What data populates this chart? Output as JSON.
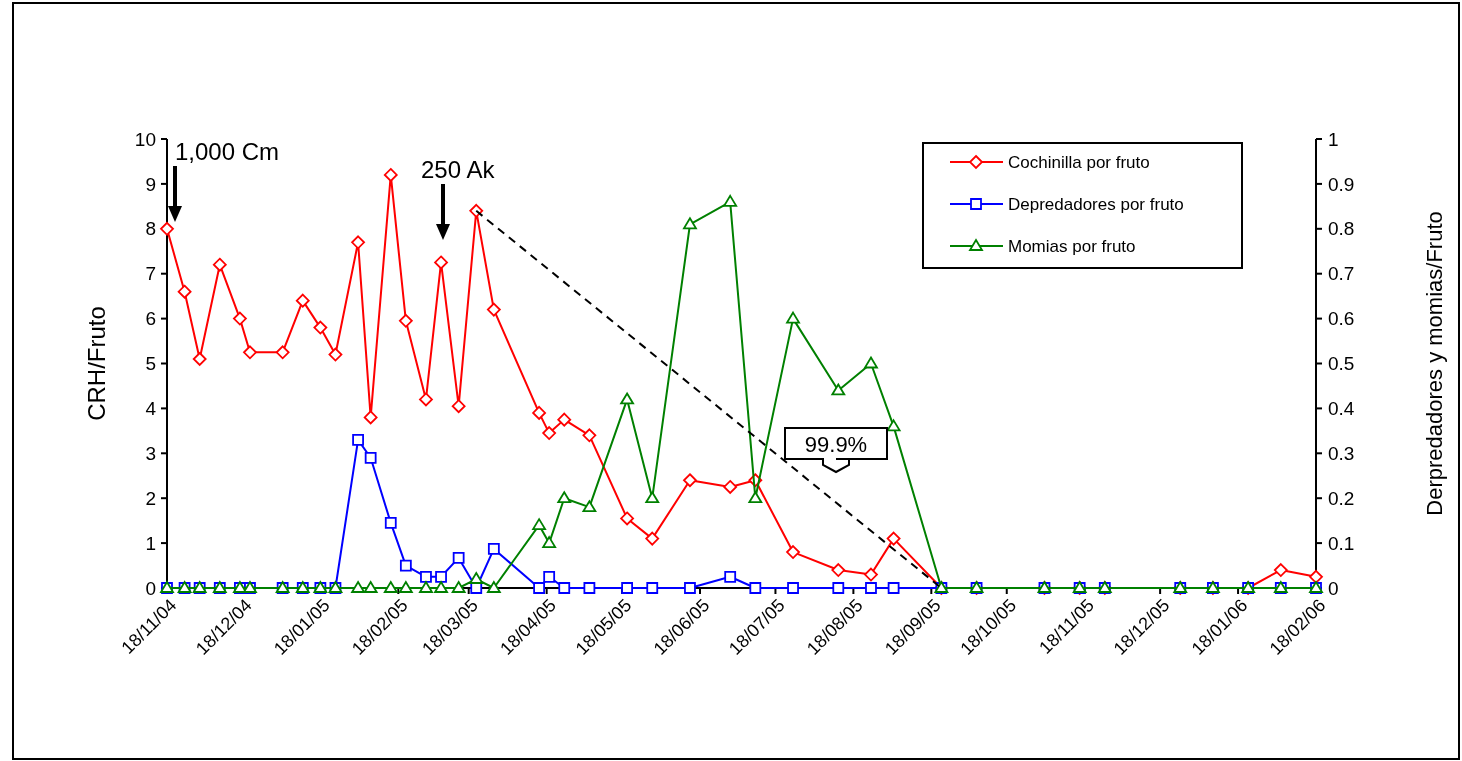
{
  "chart_data": {
    "type": "line",
    "ylabel": "CRH/Fruto",
    "y2label": "Derpredadores y momias/Fruto",
    "x": [
      "2004-11-18",
      "2004-11-25",
      "2004-12-01",
      "2004-12-09",
      "2004-12-17",
      "2004-12-21",
      "2005-01-03",
      "2005-01-11",
      "2005-01-18",
      "2005-01-24",
      "2005-02-02",
      "2005-02-07",
      "2005-02-15",
      "2005-02-21",
      "2005-03-01",
      "2005-03-07",
      "2005-03-14",
      "2005-03-21",
      "2005-03-28",
      "2005-04-15",
      "2005-04-19",
      "2005-04-25",
      "2005-05-05",
      "2005-05-20",
      "2005-05-30",
      "2005-06-14",
      "2005-06-30",
      "2005-07-10",
      "2005-07-25",
      "2005-08-12",
      "2005-08-25",
      "2005-09-03",
      "2005-09-22",
      "2005-10-06",
      "2005-11-02",
      "2005-11-16",
      "2005-11-26",
      "2005-12-26",
      "2006-01-08",
      "2006-01-22",
      "2006-02-04",
      "2006-02-18"
    ],
    "series": [
      {
        "name": "Cochinilla por fruto",
        "color": "#ff0000",
        "marker": "diamond",
        "values": [
          8.0,
          6.6,
          5.1,
          7.2,
          6.0,
          5.25,
          5.25,
          6.4,
          5.8,
          5.2,
          7.7,
          3.8,
          9.2,
          5.95,
          4.2,
          7.25,
          4.05,
          8.4,
          6.2,
          3.9,
          3.45,
          3.75,
          3.4,
          1.55,
          1.1,
          2.4,
          2.25,
          2.4,
          0.8,
          0.4,
          0.3,
          1.1,
          0,
          0,
          0,
          0,
          0,
          0,
          0,
          0,
          0.4,
          0.25
        ]
      },
      {
        "name": "Depredadores por fruto",
        "color": "#0000ff",
        "marker": "square",
        "axis": "y2",
        "values": [
          0,
          0,
          0,
          0,
          0,
          0,
          0,
          0,
          0,
          0,
          0.33,
          0.29,
          0.145,
          0.05,
          0.025,
          0.025,
          0.067,
          0,
          0.087,
          0,
          0.025,
          0,
          0,
          0,
          0,
          0,
          0.025,
          0,
          0,
          0,
          0,
          0,
          0,
          0,
          0,
          0,
          0,
          0,
          0,
          0,
          0,
          0
        ]
      },
      {
        "name": "Momias por fruto",
        "color": "#008000",
        "marker": "triangle",
        "axis": "y2",
        "values": [
          0,
          0,
          0,
          0,
          0,
          0,
          0,
          0,
          0,
          0,
          0,
          0,
          0,
          0,
          0,
          0,
          0,
          0.02,
          0,
          0.14,
          0.1,
          0.2,
          0.18,
          0.42,
          0.2,
          0.81,
          0.86,
          0.2,
          0.6,
          0.44,
          0.5,
          0.36,
          0,
          0,
          0,
          0,
          0,
          0,
          0,
          0,
          0,
          0
        ]
      },
      {
        "color": "#000000",
        "marker": "none",
        "line_style": "dashed",
        "x": [
          "2005-03-21",
          "2005-09-22"
        ],
        "values": [
          8.4,
          0
        ]
      }
    ],
    "xlim": [
      "2004-11-18",
      "2006-02-18"
    ],
    "xticks": [
      {
        "value": "2004-11-18",
        "label": "18/11/04"
      },
      {
        "value": "2004-12-18",
        "label": "18/12/04"
      },
      {
        "value": "2005-01-18",
        "label": "18/01/05"
      },
      {
        "value": "2005-02-18",
        "label": "18/02/05"
      },
      {
        "value": "2005-03-18",
        "label": "18/03/05"
      },
      {
        "value": "2005-04-18",
        "label": "18/04/05"
      },
      {
        "value": "2005-05-18",
        "label": "18/05/05"
      },
      {
        "value": "2005-06-18",
        "label": "18/06/05"
      },
      {
        "value": "2005-07-18",
        "label": "18/07/05"
      },
      {
        "value": "2005-08-18",
        "label": "18/08/05"
      },
      {
        "value": "2005-09-18",
        "label": "18/09/05"
      },
      {
        "value": "2005-10-18",
        "label": "18/10/05"
      },
      {
        "value": "2005-11-18",
        "label": "18/11/05"
      },
      {
        "value": "2005-12-18",
        "label": "18/12/05"
      },
      {
        "value": "2006-01-18",
        "label": "18/01/06"
      },
      {
        "value": "2006-02-18",
        "label": "18/02/06"
      }
    ],
    "ylim": [
      0,
      10
    ],
    "yticks": [
      0,
      1,
      2,
      3,
      4,
      5,
      6,
      7,
      8,
      9,
      10
    ],
    "y2lim": [
      0,
      1
    ],
    "y2ticks": [
      0,
      0.1,
      0.2,
      0.3,
      0.4,
      0.5,
      0.6,
      0.7,
      0.8,
      0.9,
      1
    ],
    "legend": "top right",
    "grid": false,
    "annotations": [
      "1,000 Cm",
      "250 Ak",
      "99.9%"
    ]
  }
}
